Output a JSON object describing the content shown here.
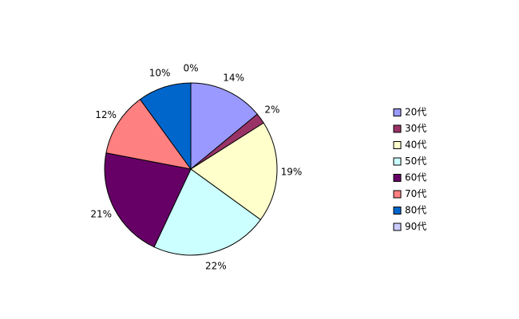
{
  "chart_data": {
    "type": "pie",
    "categories": [
      "20代",
      "30代",
      "40代",
      "50代",
      "60代",
      "70代",
      "80代",
      "90代"
    ],
    "values": [
      14,
      2,
      19,
      22,
      21,
      12,
      10,
      0
    ],
    "value_labels": [
      "14%",
      "2%",
      "19%",
      "22%",
      "21%",
      "12%",
      "10%",
      "0%"
    ],
    "colors": [
      "#9999ff",
      "#993366",
      "#ffffcc",
      "#ccffff",
      "#660066",
      "#ff8080",
      "#0066cc",
      "#ccccff"
    ],
    "legend": "right"
  }
}
